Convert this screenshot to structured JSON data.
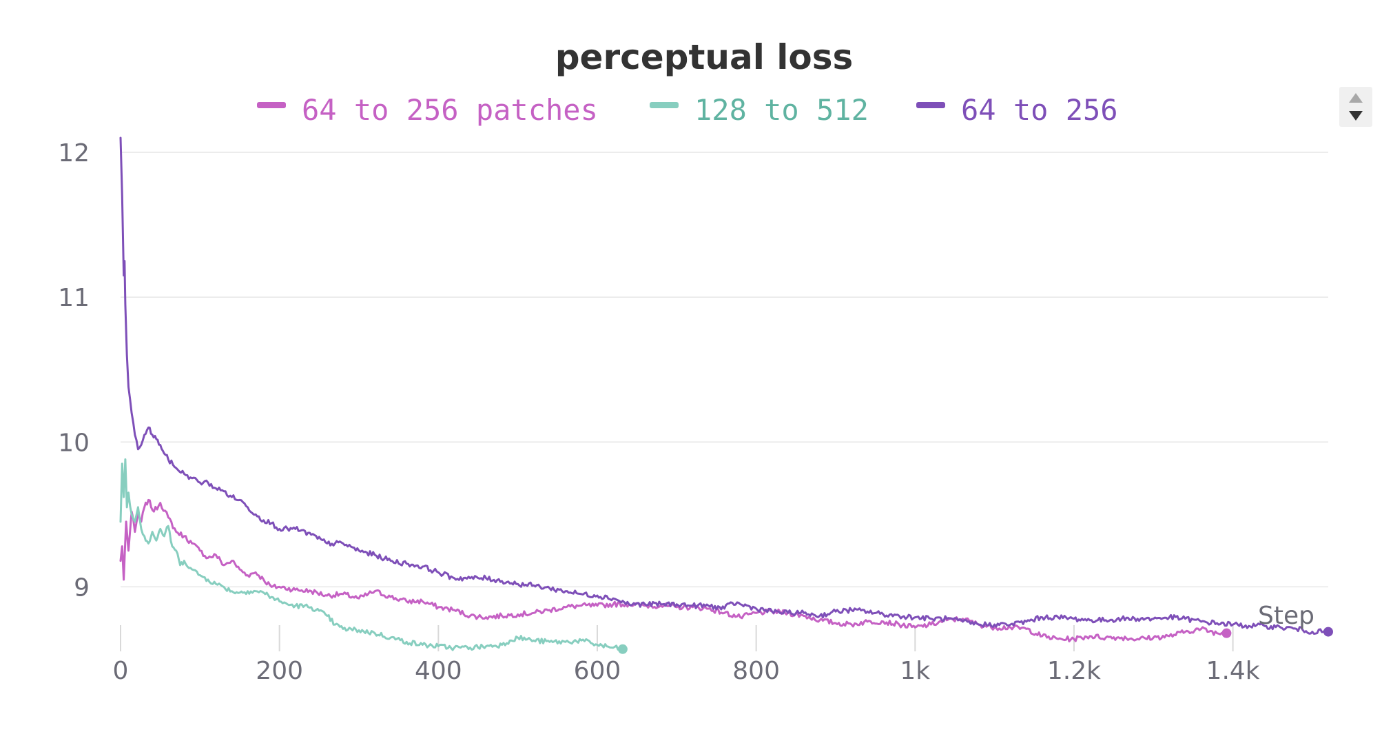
{
  "chart_data": {
    "type": "line",
    "title": "perceptual loss",
    "xlabel": "Step",
    "ylabel": "",
    "xlim": [
      0,
      1520
    ],
    "ylim": [
      8.55,
      12.1
    ],
    "x_ticks": [
      {
        "value": 0,
        "label": "0"
      },
      {
        "value": 200,
        "label": "200"
      },
      {
        "value": 400,
        "label": "400"
      },
      {
        "value": 600,
        "label": "600"
      },
      {
        "value": 800,
        "label": "800"
      },
      {
        "value": 1000,
        "label": "1k"
      },
      {
        "value": 1200,
        "label": "1.2k"
      },
      {
        "value": 1400,
        "label": "1.4k"
      }
    ],
    "y_ticks": [
      {
        "value": 9,
        "label": "9"
      },
      {
        "value": 10,
        "label": "10"
      },
      {
        "value": 11,
        "label": "11"
      },
      {
        "value": 12,
        "label": "12"
      }
    ],
    "grid": "horizontal",
    "legend_position": "top",
    "series": [
      {
        "name": "64 to 256 patches",
        "color": "#c561c4",
        "end_marker": true,
        "points": [
          [
            0,
            9.18
          ],
          [
            2,
            9.28
          ],
          [
            4,
            9.05
          ],
          [
            7,
            9.45
          ],
          [
            10,
            9.25
          ],
          [
            14,
            9.52
          ],
          [
            18,
            9.38
          ],
          [
            22,
            9.5
          ],
          [
            26,
            9.45
          ],
          [
            30,
            9.55
          ],
          [
            35,
            9.6
          ],
          [
            42,
            9.52
          ],
          [
            50,
            9.58
          ],
          [
            60,
            9.48
          ],
          [
            70,
            9.38
          ],
          [
            80,
            9.35
          ],
          [
            90,
            9.3
          ],
          [
            100,
            9.25
          ],
          [
            110,
            9.2
          ],
          [
            120,
            9.22
          ],
          [
            130,
            9.15
          ],
          [
            140,
            9.18
          ],
          [
            150,
            9.12
          ],
          [
            160,
            9.08
          ],
          [
            170,
            9.1
          ],
          [
            180,
            9.05
          ],
          [
            190,
            9.0
          ],
          [
            200,
            9.0
          ],
          [
            220,
            8.98
          ],
          [
            240,
            8.97
          ],
          [
            260,
            8.94
          ],
          [
            280,
            8.95
          ],
          [
            300,
            8.92
          ],
          [
            320,
            8.97
          ],
          [
            340,
            8.93
          ],
          [
            360,
            8.9
          ],
          [
            380,
            8.9
          ],
          [
            400,
            8.86
          ],
          [
            420,
            8.84
          ],
          [
            440,
            8.8
          ],
          [
            460,
            8.79
          ],
          [
            480,
            8.8
          ],
          [
            500,
            8.81
          ],
          [
            520,
            8.82
          ],
          [
            540,
            8.84
          ],
          [
            560,
            8.86
          ],
          [
            580,
            8.87
          ],
          [
            600,
            8.87
          ],
          [
            620,
            8.88
          ],
          [
            640,
            8.88
          ],
          [
            660,
            8.87
          ],
          [
            680,
            8.87
          ],
          [
            700,
            8.86
          ],
          [
            720,
            8.86
          ],
          [
            740,
            8.85
          ],
          [
            760,
            8.82
          ],
          [
            780,
            8.79
          ],
          [
            800,
            8.82
          ],
          [
            820,
            8.83
          ],
          [
            840,
            8.82
          ],
          [
            860,
            8.8
          ],
          [
            880,
            8.77
          ],
          [
            900,
            8.75
          ],
          [
            920,
            8.74
          ],
          [
            940,
            8.76
          ],
          [
            960,
            8.76
          ],
          [
            980,
            8.74
          ],
          [
            1000,
            8.72
          ],
          [
            1020,
            8.74
          ],
          [
            1040,
            8.77
          ],
          [
            1060,
            8.78
          ],
          [
            1080,
            8.74
          ],
          [
            1100,
            8.72
          ],
          [
            1120,
            8.72
          ],
          [
            1140,
            8.71
          ],
          [
            1160,
            8.66
          ],
          [
            1180,
            8.64
          ],
          [
            1200,
            8.64
          ],
          [
            1220,
            8.66
          ],
          [
            1240,
            8.65
          ],
          [
            1260,
            8.65
          ],
          [
            1280,
            8.64
          ],
          [
            1300,
            8.65
          ],
          [
            1320,
            8.66
          ],
          [
            1340,
            8.69
          ],
          [
            1360,
            8.71
          ],
          [
            1380,
            8.68
          ],
          [
            1392,
            8.68
          ]
        ]
      },
      {
        "name": "128 to 512",
        "color": "#87cebf",
        "end_marker": true,
        "points": [
          [
            0,
            9.45
          ],
          [
            2,
            9.85
          ],
          [
            4,
            9.62
          ],
          [
            6,
            9.88
          ],
          [
            8,
            9.55
          ],
          [
            10,
            9.65
          ],
          [
            14,
            9.5
          ],
          [
            18,
            9.45
          ],
          [
            22,
            9.55
          ],
          [
            26,
            9.4
          ],
          [
            30,
            9.35
          ],
          [
            35,
            9.3
          ],
          [
            40,
            9.38
          ],
          [
            45,
            9.32
          ],
          [
            50,
            9.4
          ],
          [
            55,
            9.35
          ],
          [
            60,
            9.42
          ],
          [
            65,
            9.28
          ],
          [
            70,
            9.25
          ],
          [
            75,
            9.15
          ],
          [
            80,
            9.18
          ],
          [
            90,
            9.12
          ],
          [
            100,
            9.08
          ],
          [
            110,
            9.05
          ],
          [
            120,
            9.02
          ],
          [
            130,
            9.0
          ],
          [
            140,
            8.97
          ],
          [
            150,
            8.96
          ],
          [
            160,
            8.97
          ],
          [
            170,
            8.97
          ],
          [
            180,
            8.96
          ],
          [
            190,
            8.93
          ],
          [
            200,
            8.9
          ],
          [
            210,
            8.88
          ],
          [
            220,
            8.87
          ],
          [
            240,
            8.86
          ],
          [
            260,
            8.8
          ],
          [
            270,
            8.74
          ],
          [
            280,
            8.71
          ],
          [
            300,
            8.7
          ],
          [
            320,
            8.68
          ],
          [
            340,
            8.65
          ],
          [
            360,
            8.62
          ],
          [
            380,
            8.6
          ],
          [
            400,
            8.59
          ],
          [
            420,
            8.58
          ],
          [
            440,
            8.58
          ],
          [
            460,
            8.59
          ],
          [
            480,
            8.6
          ],
          [
            490,
            8.63
          ],
          [
            500,
            8.65
          ],
          [
            520,
            8.63
          ],
          [
            540,
            8.62
          ],
          [
            560,
            8.62
          ],
          [
            580,
            8.63
          ],
          [
            600,
            8.6
          ],
          [
            620,
            8.58
          ],
          [
            632,
            8.57
          ]
        ]
      },
      {
        "name": "64 to 256",
        "color": "#7e4fb8",
        "end_marker": true,
        "points": [
          [
            0,
            12.1
          ],
          [
            2,
            11.7
          ],
          [
            4,
            11.15
          ],
          [
            5,
            11.25
          ],
          [
            6,
            10.95
          ],
          [
            8,
            10.6
          ],
          [
            10,
            10.38
          ],
          [
            14,
            10.2
          ],
          [
            18,
            10.05
          ],
          [
            22,
            9.95
          ],
          [
            26,
            9.98
          ],
          [
            30,
            10.05
          ],
          [
            35,
            10.1
          ],
          [
            40,
            10.05
          ],
          [
            45,
            10.02
          ],
          [
            50,
            9.98
          ],
          [
            55,
            9.92
          ],
          [
            60,
            9.88
          ],
          [
            70,
            9.82
          ],
          [
            80,
            9.78
          ],
          [
            90,
            9.75
          ],
          [
            100,
            9.72
          ],
          [
            110,
            9.72
          ],
          [
            120,
            9.68
          ],
          [
            130,
            9.66
          ],
          [
            140,
            9.62
          ],
          [
            150,
            9.6
          ],
          [
            160,
            9.55
          ],
          [
            170,
            9.5
          ],
          [
            180,
            9.46
          ],
          [
            190,
            9.44
          ],
          [
            200,
            9.4
          ],
          [
            220,
            9.4
          ],
          [
            240,
            9.36
          ],
          [
            260,
            9.3
          ],
          [
            280,
            9.3
          ],
          [
            300,
            9.25
          ],
          [
            320,
            9.22
          ],
          [
            340,
            9.18
          ],
          [
            360,
            9.16
          ],
          [
            380,
            9.14
          ],
          [
            400,
            9.1
          ],
          [
            420,
            9.06
          ],
          [
            440,
            9.06
          ],
          [
            460,
            9.06
          ],
          [
            480,
            9.04
          ],
          [
            500,
            9.02
          ],
          [
            520,
            9.01
          ],
          [
            540,
            8.99
          ],
          [
            560,
            8.97
          ],
          [
            580,
            8.95
          ],
          [
            600,
            8.94
          ],
          [
            620,
            8.92
          ],
          [
            640,
            8.88
          ],
          [
            660,
            8.88
          ],
          [
            680,
            8.88
          ],
          [
            700,
            8.88
          ],
          [
            720,
            8.87
          ],
          [
            740,
            8.87
          ],
          [
            760,
            8.85
          ],
          [
            770,
            8.89
          ],
          [
            780,
            8.88
          ],
          [
            800,
            8.85
          ],
          [
            820,
            8.83
          ],
          [
            840,
            8.82
          ],
          [
            860,
            8.82
          ],
          [
            880,
            8.8
          ],
          [
            900,
            8.83
          ],
          [
            920,
            8.84
          ],
          [
            940,
            8.83
          ],
          [
            960,
            8.81
          ],
          [
            980,
            8.8
          ],
          [
            1000,
            8.79
          ],
          [
            1020,
            8.78
          ],
          [
            1040,
            8.78
          ],
          [
            1060,
            8.76
          ],
          [
            1080,
            8.74
          ],
          [
            1100,
            8.74
          ],
          [
            1120,
            8.74
          ],
          [
            1140,
            8.76
          ],
          [
            1160,
            8.79
          ],
          [
            1180,
            8.79
          ],
          [
            1200,
            8.78
          ],
          [
            1220,
            8.77
          ],
          [
            1240,
            8.77
          ],
          [
            1260,
            8.78
          ],
          [
            1280,
            8.78
          ],
          [
            1300,
            8.78
          ],
          [
            1320,
            8.79
          ],
          [
            1340,
            8.78
          ],
          [
            1360,
            8.76
          ],
          [
            1380,
            8.75
          ],
          [
            1400,
            8.74
          ],
          [
            1420,
            8.73
          ],
          [
            1440,
            8.73
          ],
          [
            1460,
            8.72
          ],
          [
            1480,
            8.71
          ],
          [
            1500,
            8.69
          ],
          [
            1520,
            8.69
          ]
        ]
      }
    ]
  },
  "legend": {
    "items": [
      {
        "label": "64 to 256 patches",
        "color": "#c561c4"
      },
      {
        "label": "128 to 512",
        "color": "#5fb3a1",
        "swatch": "#87cebf"
      },
      {
        "label": "64 to 256",
        "color": "#7e4fb8"
      }
    ],
    "scroll_up_icon": "triangle-up-icon",
    "scroll_down_icon": "triangle-down-icon"
  }
}
